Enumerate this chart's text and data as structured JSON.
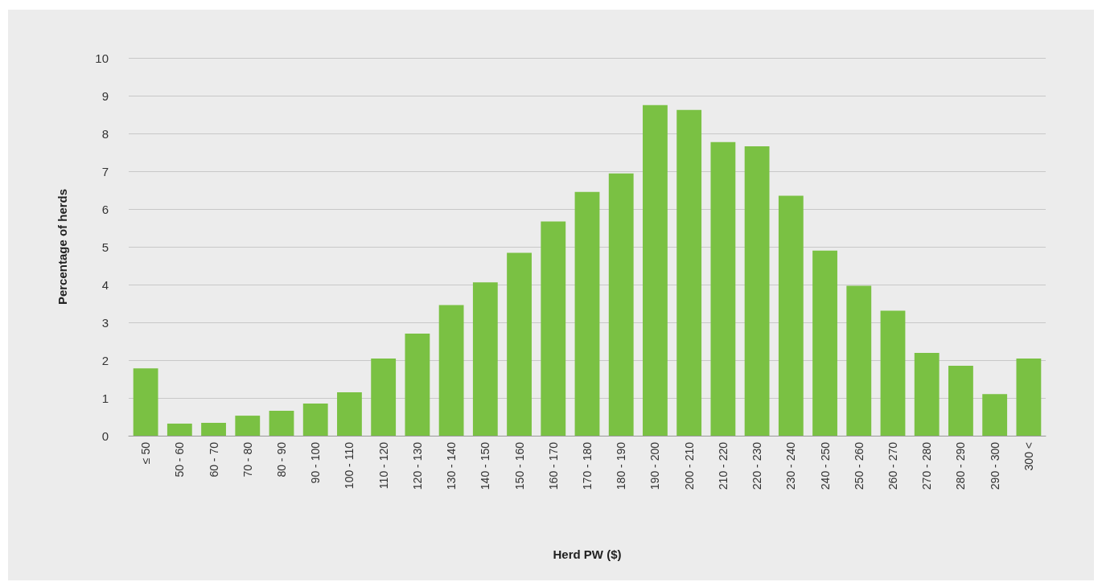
{
  "chart_data": {
    "type": "bar",
    "xlabel": "Herd PW ($)",
    "ylabel": "Percentage of herds",
    "categories": [
      "≤ 50",
      "50 - 60",
      "60 - 70",
      "70 - 80",
      "80 - 90",
      "90 - 100",
      "100 - 110",
      "110 - 120",
      "120 - 130",
      "130 - 140",
      "140 - 150",
      "150 - 160",
      "160 - 170",
      "170 - 180",
      "180 - 190",
      "190 - 200",
      "200 - 210",
      "210 - 220",
      "220 - 230",
      "230 - 240",
      "240 - 250",
      "250 - 260",
      "260 - 270",
      "270 - 280",
      "280 - 290",
      "290 - 300",
      "300 <"
    ],
    "values": [
      1.78,
      0.32,
      0.34,
      0.53,
      0.66,
      0.85,
      1.15,
      2.04,
      2.7,
      3.46,
      4.06,
      4.84,
      5.67,
      6.45,
      6.94,
      8.75,
      8.62,
      7.77,
      7.66,
      6.35,
      4.9,
      3.97,
      3.31,
      2.19,
      1.85,
      1.1,
      2.04
    ],
    "color": "#7ac143",
    "ylim": [
      0,
      10
    ],
    "yticks": [
      0,
      1,
      2,
      3,
      4,
      5,
      6,
      7,
      8,
      9,
      10
    ],
    "grid": "y"
  }
}
